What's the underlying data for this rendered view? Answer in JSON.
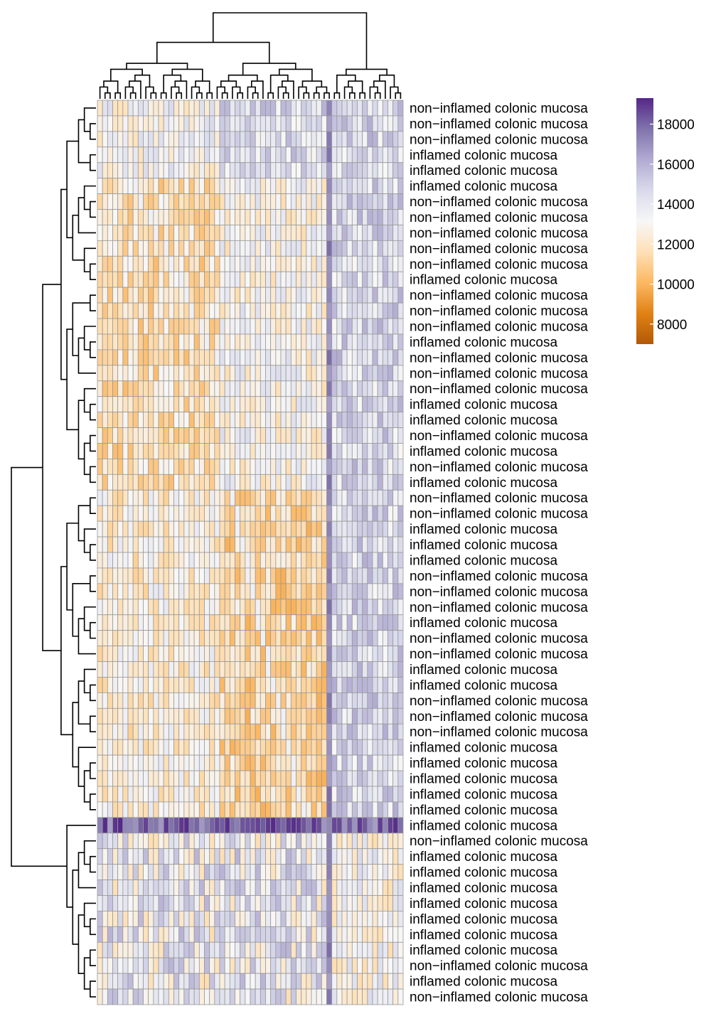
{
  "chart_data": {
    "type": "heatmap",
    "title": "",
    "xlabel": "",
    "ylabel": "",
    "n_rows": 58,
    "n_cols": 60,
    "row_labels": [
      "non−inflamed colonic mucosa",
      "non−inflamed colonic mucosa",
      "non−inflamed colonic mucosa",
      "inflamed colonic mucosa",
      "inflamed colonic mucosa",
      "inflamed colonic mucosa",
      "non−inflamed colonic mucosa",
      "non−inflamed colonic mucosa",
      "non−inflamed colonic mucosa",
      "non−inflamed colonic mucosa",
      "non−inflamed colonic mucosa",
      "inflamed colonic mucosa",
      "non−inflamed colonic mucosa",
      "non−inflamed colonic mucosa",
      "non−inflamed colonic mucosa",
      "inflamed colonic mucosa",
      "non−inflamed colonic mucosa",
      "non−inflamed colonic mucosa",
      "non−inflamed colonic mucosa",
      "inflamed colonic mucosa",
      "inflamed colonic mucosa",
      "non−inflamed colonic mucosa",
      "inflamed colonic mucosa",
      "non−inflamed colonic mucosa",
      "inflamed colonic mucosa",
      "non−inflamed colonic mucosa",
      "non−inflamed colonic mucosa",
      "inflamed colonic mucosa",
      "inflamed colonic mucosa",
      "inflamed colonic mucosa",
      "non−inflamed colonic mucosa",
      "non−inflamed colonic mucosa",
      "non−inflamed colonic mucosa",
      "inflamed colonic mucosa",
      "non−inflamed colonic mucosa",
      "non−inflamed colonic mucosa",
      "inflamed colonic mucosa",
      "inflamed colonic mucosa",
      "non−inflamed colonic mucosa",
      "non−inflamed colonic mucosa",
      "non−inflamed colonic mucosa",
      "inflamed colonic mucosa",
      "inflamed colonic mucosa",
      "inflamed colonic mucosa",
      "inflamed colonic mucosa",
      "inflamed colonic mucosa",
      "inflamed colonic mucosa",
      "non−inflamed colonic mucosa",
      "inflamed colonic mucosa",
      "inflamed colonic mucosa",
      "inflamed colonic mucosa",
      "inflamed colonic mucosa",
      "inflamed colonic mucosa",
      "inflamed colonic mucosa",
      "inflamed colonic mucosa",
      "non−inflamed colonic mucosa",
      "inflamed colonic mucosa",
      "non−inflamed colonic mucosa"
    ],
    "colorbar": {
      "ticks": [
        8000,
        10000,
        12000,
        14000,
        16000,
        18000
      ],
      "range": [
        7000,
        19300
      ],
      "colors": [
        "#b35806",
        "#e08214",
        "#fdb863",
        "#fee0b6",
        "#f7f7f7",
        "#d8daeb",
        "#b2abd2",
        "#8073ac",
        "#542788"
      ]
    },
    "column_groups": [
      {
        "name": "orange block",
        "start": 0,
        "end": 45
      },
      {
        "name": "purple block",
        "start": 46,
        "end": 59
      }
    ],
    "cell_border_color": "#999999",
    "dendrograms": {
      "rows": "left",
      "columns": "top"
    }
  }
}
